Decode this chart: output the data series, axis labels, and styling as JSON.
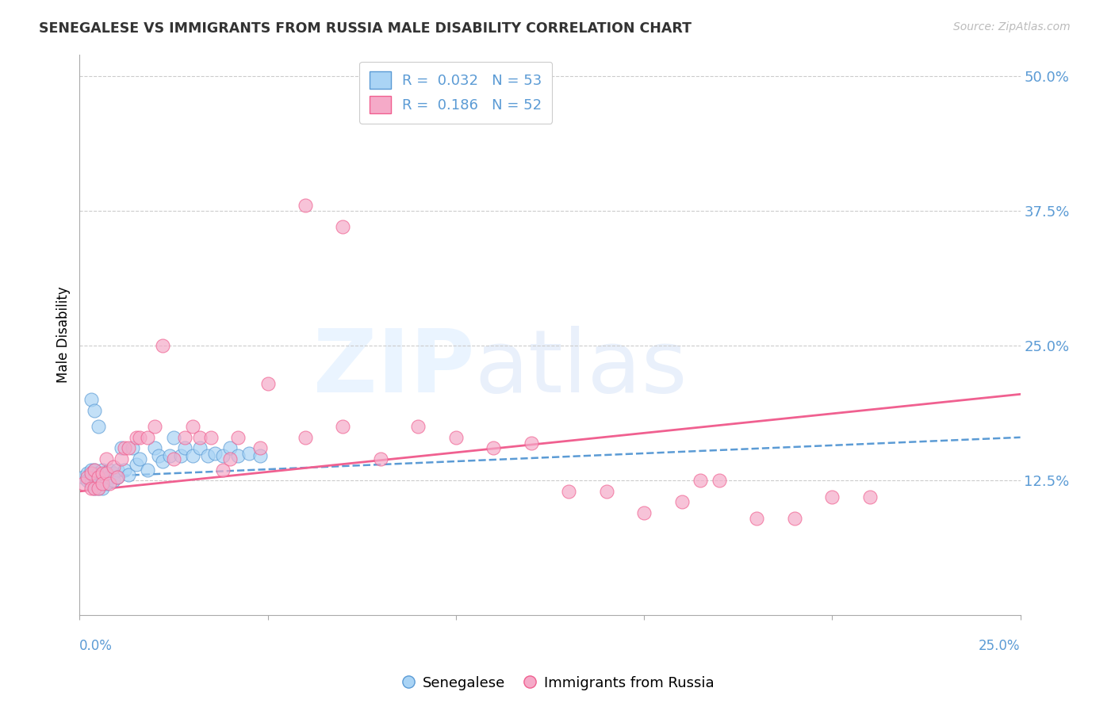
{
  "title": "SENEGALESE VS IMMIGRANTS FROM RUSSIA MALE DISABILITY CORRELATION CHART",
  "source": "Source: ZipAtlas.com",
  "ylabel": "Male Disability",
  "yticks": [
    "12.5%",
    "25.0%",
    "37.5%",
    "50.0%"
  ],
  "ytick_vals": [
    0.125,
    0.25,
    0.375,
    0.5
  ],
  "xrange": [
    0.0,
    0.25
  ],
  "yrange": [
    0.0,
    0.52
  ],
  "color_blue": "#aad4f5",
  "color_pink": "#f5aac8",
  "color_trendline_blue": "#5b9bd5",
  "color_trendline_pink": "#f06090",
  "color_axis_labels": "#5b9bd5",
  "senegalese_x": [
    0.001,
    0.002,
    0.002,
    0.003,
    0.003,
    0.003,
    0.004,
    0.004,
    0.004,
    0.004,
    0.005,
    0.005,
    0.005,
    0.005,
    0.006,
    0.006,
    0.006,
    0.006,
    0.007,
    0.007,
    0.007,
    0.008,
    0.008,
    0.009,
    0.009,
    0.01,
    0.01,
    0.011,
    0.012,
    0.013,
    0.014,
    0.015,
    0.016,
    0.018,
    0.02,
    0.021,
    0.022,
    0.024,
    0.025,
    0.027,
    0.028,
    0.03,
    0.032,
    0.034,
    0.036,
    0.038,
    0.04,
    0.042,
    0.045,
    0.048,
    0.003,
    0.004,
    0.005
  ],
  "senegalese_y": [
    0.128,
    0.132,
    0.125,
    0.135,
    0.128,
    0.122,
    0.135,
    0.128,
    0.122,
    0.118,
    0.132,
    0.128,
    0.122,
    0.118,
    0.135,
    0.13,
    0.125,
    0.118,
    0.132,
    0.128,
    0.122,
    0.135,
    0.128,
    0.132,
    0.125,
    0.135,
    0.128,
    0.155,
    0.135,
    0.13,
    0.155,
    0.14,
    0.145,
    0.135,
    0.155,
    0.148,
    0.143,
    0.148,
    0.165,
    0.148,
    0.155,
    0.148,
    0.155,
    0.148,
    0.15,
    0.148,
    0.155,
    0.148,
    0.15,
    0.148,
    0.2,
    0.19,
    0.175
  ],
  "russia_x": [
    0.001,
    0.002,
    0.003,
    0.003,
    0.004,
    0.004,
    0.005,
    0.005,
    0.006,
    0.006,
    0.007,
    0.007,
    0.008,
    0.009,
    0.01,
    0.011,
    0.012,
    0.013,
    0.015,
    0.016,
    0.018,
    0.02,
    0.022,
    0.025,
    0.028,
    0.03,
    0.032,
    0.035,
    0.038,
    0.04,
    0.042,
    0.048,
    0.05,
    0.06,
    0.07,
    0.08,
    0.09,
    0.1,
    0.11,
    0.12,
    0.13,
    0.14,
    0.15,
    0.16,
    0.165,
    0.17,
    0.18,
    0.19,
    0.2,
    0.21,
    0.06,
    0.07
  ],
  "russia_y": [
    0.122,
    0.128,
    0.132,
    0.118,
    0.135,
    0.118,
    0.128,
    0.118,
    0.132,
    0.122,
    0.145,
    0.132,
    0.122,
    0.138,
    0.128,
    0.145,
    0.155,
    0.155,
    0.165,
    0.165,
    0.165,
    0.175,
    0.25,
    0.145,
    0.165,
    0.175,
    0.165,
    0.165,
    0.135,
    0.145,
    0.165,
    0.155,
    0.215,
    0.165,
    0.175,
    0.145,
    0.175,
    0.165,
    0.155,
    0.16,
    0.115,
    0.115,
    0.095,
    0.105,
    0.125,
    0.125,
    0.09,
    0.09,
    0.11,
    0.11,
    0.38,
    0.36
  ]
}
